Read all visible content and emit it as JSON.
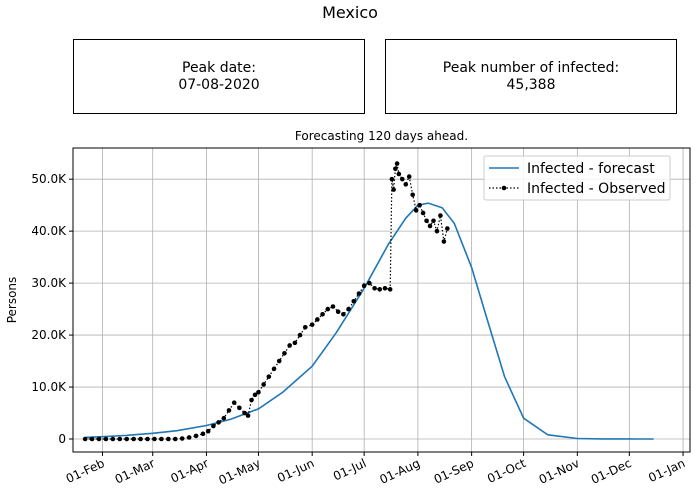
{
  "figure_title": "Mexico",
  "info_boxes": {
    "peak_date": {
      "label": "Peak date:",
      "value": "07-08-2020"
    },
    "peak_infected": {
      "label": "Peak number of infected:",
      "value": "45,388"
    }
  },
  "chart_data": {
    "type": "line",
    "title": "Forecasting 120 days ahead.",
    "xlabel": "",
    "ylabel": "Persons",
    "grid": true,
    "legend_position": "top-right",
    "x_axis": {
      "type": "date",
      "range": [
        "2020-01-15",
        "2021-01-05"
      ],
      "ticks": [
        {
          "date": "2020-02-01",
          "label": "01-Feb"
        },
        {
          "date": "2020-03-01",
          "label": "01-Mar"
        },
        {
          "date": "2020-04-01",
          "label": "01-Apr"
        },
        {
          "date": "2020-05-01",
          "label": "01-May"
        },
        {
          "date": "2020-06-01",
          "label": "01-Jun"
        },
        {
          "date": "2020-07-01",
          "label": "01-Jul"
        },
        {
          "date": "2020-08-01",
          "label": "01-Aug"
        },
        {
          "date": "2020-09-01",
          "label": "01-Sep"
        },
        {
          "date": "2020-10-01",
          "label": "01-Oct"
        },
        {
          "date": "2020-11-01",
          "label": "01-Nov"
        },
        {
          "date": "2020-12-01",
          "label": "01-Dec"
        },
        {
          "date": "2021-01-01",
          "label": "01-Jan"
        }
      ]
    },
    "y_axis": {
      "range": [
        -2500,
        56000
      ],
      "ticks": [
        {
          "value": 0,
          "label": "0"
        },
        {
          "value": 10000,
          "label": "10.0K"
        },
        {
          "value": 20000,
          "label": "20.0K"
        },
        {
          "value": 30000,
          "label": "30.0K"
        },
        {
          "value": 40000,
          "label": "40.0K"
        },
        {
          "value": 50000,
          "label": "50.0K"
        }
      ]
    },
    "series": [
      {
        "name": "Infected - forecast",
        "style": "solid-line",
        "color": "#1f77b4",
        "x": [
          "2020-01-22",
          "2020-02-01",
          "2020-02-15",
          "2020-03-01",
          "2020-03-15",
          "2020-04-01",
          "2020-04-15",
          "2020-05-01",
          "2020-05-15",
          "2020-06-01",
          "2020-06-15",
          "2020-07-01",
          "2020-07-15",
          "2020-07-25",
          "2020-08-01",
          "2020-08-07",
          "2020-08-15",
          "2020-08-22",
          "2020-09-01",
          "2020-09-10",
          "2020-09-20",
          "2020-10-01",
          "2020-10-15",
          "2020-11-01",
          "2020-11-15",
          "2020-12-01",
          "2020-12-15"
        ],
        "values": [
          300,
          450,
          700,
          1100,
          1600,
          2600,
          3800,
          5800,
          9000,
          14000,
          20500,
          29000,
          37500,
          42500,
          45000,
          45388,
          44500,
          41500,
          33000,
          23000,
          12000,
          4000,
          800,
          100,
          20,
          5,
          0
        ]
      },
      {
        "name": "Infected - Observed",
        "style": "dotted-line-with-markers",
        "color": "#000000",
        "x": [
          "2020-01-22",
          "2020-01-26",
          "2020-01-30",
          "2020-02-03",
          "2020-02-07",
          "2020-02-11",
          "2020-02-15",
          "2020-02-19",
          "2020-02-23",
          "2020-02-27",
          "2020-03-02",
          "2020-03-06",
          "2020-03-10",
          "2020-03-14",
          "2020-03-18",
          "2020-03-22",
          "2020-03-26",
          "2020-03-30",
          "2020-04-02",
          "2020-04-05",
          "2020-04-08",
          "2020-04-11",
          "2020-04-14",
          "2020-04-17",
          "2020-04-20",
          "2020-04-23",
          "2020-04-25",
          "2020-04-27",
          "2020-04-29",
          "2020-05-01",
          "2020-05-04",
          "2020-05-07",
          "2020-05-10",
          "2020-05-13",
          "2020-05-16",
          "2020-05-19",
          "2020-05-22",
          "2020-05-25",
          "2020-05-28",
          "2020-06-01",
          "2020-06-04",
          "2020-06-07",
          "2020-06-10",
          "2020-06-13",
          "2020-06-16",
          "2020-06-19",
          "2020-06-22",
          "2020-06-25",
          "2020-06-28",
          "2020-07-01",
          "2020-07-04",
          "2020-07-07",
          "2020-07-10",
          "2020-07-13",
          "2020-07-16",
          "2020-07-17",
          "2020-07-18",
          "2020-07-19",
          "2020-07-20",
          "2020-07-21",
          "2020-07-23",
          "2020-07-25",
          "2020-07-27",
          "2020-07-29",
          "2020-07-31",
          "2020-08-02",
          "2020-08-04",
          "2020-08-06",
          "2020-08-08",
          "2020-08-10",
          "2020-08-12",
          "2020-08-14",
          "2020-08-16",
          "2020-08-18"
        ],
        "values": [
          0,
          0,
          0,
          0,
          0,
          0,
          0,
          0,
          0,
          0,
          0,
          0,
          0,
          0,
          100,
          300,
          600,
          1000,
          1500,
          2500,
          3200,
          4000,
          5500,
          7000,
          6000,
          5000,
          4500,
          7500,
          8500,
          9000,
          10500,
          12000,
          13500,
          15000,
          16500,
          18000,
          18500,
          20000,
          21500,
          22000,
          23000,
          24000,
          25000,
          25500,
          24500,
          24000,
          25000,
          26500,
          28000,
          29500,
          30000,
          29000,
          28800,
          29000,
          28800,
          50000,
          48000,
          52000,
          53000,
          51000,
          50000,
          49000,
          50500,
          47000,
          44000,
          45000,
          43500,
          42000,
          41000,
          42000,
          40000,
          43000,
          38000,
          40500
        ]
      }
    ]
  }
}
